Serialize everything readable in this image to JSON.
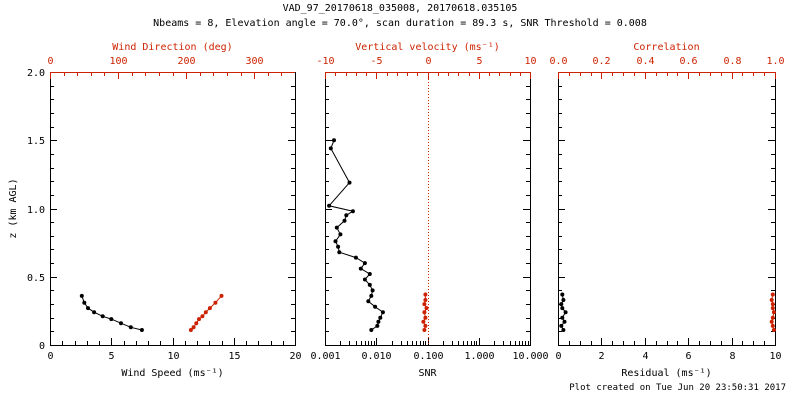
{
  "title": "VAD_97_20170618_035008, 20170618.035105",
  "subtitle": "Nbeams = 8, Elevation angle = 70.0°, scan duration = 89.3 s, SNR Threshold = 0.008",
  "footer_note": "Plot created on Tue Jun 20 23:50:31 2017",
  "colors": {
    "axis": "#000000",
    "secondary": "#cc2200",
    "background": "#ffffff"
  },
  "chart_data": [
    {
      "type": "line",
      "panel": "wind",
      "xlabel": "Wind Speed (ms⁻¹)",
      "ylabel": "z (km AGL)",
      "xscale": "linear",
      "xlim": [
        0,
        20
      ],
      "xticks": [
        0,
        5,
        10,
        15,
        20
      ],
      "xtick_labels": [
        "0",
        "5",
        "10",
        "15",
        "20"
      ],
      "xminor_divs": 5,
      "ylim": [
        0,
        2
      ],
      "yticks": [
        0,
        0.5,
        1,
        1.5,
        2
      ],
      "ytick_labels": [
        "0",
        "0.5",
        "1.0",
        "1.5",
        "2.0"
      ],
      "yminor_divs": 5,
      "grid": false,
      "top_axis": {
        "label": "Wind Direction (deg)",
        "lim": [
          0,
          360
        ],
        "ticks": [
          0,
          100,
          200,
          300
        ],
        "tick_labels": [
          "0",
          "100",
          "200",
          "300"
        ],
        "minor_divs": 5
      },
      "series": [
        {
          "name": "wind-speed",
          "axis": "bottom",
          "color": "#000000",
          "x": [
            2.6,
            2.8,
            3.1,
            3.6,
            4.3,
            5.0,
            5.8,
            6.6,
            7.5
          ],
          "z": [
            0.36,
            0.31,
            0.27,
            0.24,
            0.21,
            0.19,
            0.16,
            0.13,
            0.11
          ]
        },
        {
          "name": "wind-direction",
          "axis": "top",
          "color": "#cc2200",
          "x": [
            207,
            211,
            215,
            219,
            224,
            229,
            235,
            243,
            252
          ],
          "z": [
            0.11,
            0.13,
            0.16,
            0.19,
            0.21,
            0.24,
            0.27,
            0.31,
            0.36
          ]
        }
      ]
    },
    {
      "type": "line",
      "panel": "snr",
      "xlabel": "SNR",
      "xscale": "log",
      "xlim": [
        0.001,
        10
      ],
      "xticks": [
        0.001,
        0.01,
        0.1,
        1,
        10
      ],
      "xtick_labels": [
        "0.001",
        "0.010",
        "0.100",
        "1.000",
        "10.000"
      ],
      "ylim": [
        0,
        2
      ],
      "yticks": [
        0,
        0.5,
        1,
        1.5,
        2
      ],
      "yminor_divs": 5,
      "grid": false,
      "top_axis": {
        "label": "Vertical velocity (ms⁻¹)",
        "lim": [
          -10,
          10
        ],
        "ticks": [
          -10,
          -5,
          0,
          5,
          10
        ],
        "tick_labels": [
          "-10",
          "-5",
          "0",
          "5",
          "10"
        ],
        "minor_divs": 5
      },
      "ref_line": {
        "axis": "top",
        "value": 0,
        "style": "dotted",
        "color": "#cc2200"
      },
      "series": [
        {
          "name": "snr-profile",
          "axis": "bottom",
          "color": "#000000",
          "x": [
            0.008,
            0.0105,
            0.011,
            0.012,
            0.0135,
            0.0095,
            0.007,
            0.008,
            0.0085,
            0.0075,
            0.006,
            0.0075,
            0.005,
            0.006,
            0.004,
            0.0019,
            0.0018,
            0.0016,
            0.002,
            0.0017,
            0.0024,
            0.0026,
            0.0035,
            0.0012,
            0.003,
            0.0013,
            0.0015
          ],
          "z": [
            0.11,
            0.14,
            0.17,
            0.2,
            0.24,
            0.28,
            0.32,
            0.36,
            0.4,
            0.44,
            0.48,
            0.52,
            0.56,
            0.6,
            0.64,
            0.68,
            0.72,
            0.76,
            0.81,
            0.86,
            0.91,
            0.95,
            0.98,
            1.02,
            1.19,
            1.44,
            1.5
          ]
        },
        {
          "name": "vertical-velocity",
          "axis": "top",
          "color": "#cc2200",
          "x": [
            -0.3,
            -0.2,
            -0.4,
            -0.2,
            -0.3,
            -0.1,
            -0.3,
            -0.2,
            -0.2
          ],
          "z": [
            0.11,
            0.14,
            0.17,
            0.2,
            0.24,
            0.27,
            0.3,
            0.33,
            0.37
          ]
        }
      ]
    },
    {
      "type": "line",
      "panel": "residual",
      "xlabel": "Residual (ms⁻¹)",
      "xscale": "linear",
      "xlim": [
        0,
        10
      ],
      "xticks": [
        0,
        2,
        4,
        6,
        8,
        10
      ],
      "xtick_labels": [
        "0",
        "2",
        "4",
        "6",
        "8",
        "10"
      ],
      "xminor_divs": 4,
      "ylim": [
        0,
        2
      ],
      "yticks": [
        0,
        0.5,
        1,
        1.5,
        2
      ],
      "yminor_divs": 5,
      "grid": false,
      "top_axis": {
        "label": "Correlation",
        "lim": [
          0,
          1
        ],
        "ticks": [
          0,
          0.2,
          0.4,
          0.6,
          0.8,
          1
        ],
        "tick_labels": [
          "0.0",
          "0.2",
          "0.4",
          "0.6",
          "0.8",
          "1.0"
        ],
        "minor_divs": 4
      },
      "series": [
        {
          "name": "residual",
          "axis": "bottom",
          "color": "#000000",
          "x": [
            0.25,
            0.15,
            0.3,
            0.2,
            0.35,
            0.2,
            0.15,
            0.25,
            0.2
          ],
          "z": [
            0.11,
            0.14,
            0.17,
            0.2,
            0.24,
            0.27,
            0.3,
            0.33,
            0.37
          ]
        },
        {
          "name": "correlation",
          "axis": "top",
          "color": "#cc2200",
          "x": [
            0.995,
            0.99,
            0.985,
            0.99,
            0.995,
            0.99,
            0.99,
            0.985,
            0.99
          ],
          "z": [
            0.11,
            0.14,
            0.17,
            0.2,
            0.24,
            0.27,
            0.3,
            0.33,
            0.37
          ]
        }
      ]
    }
  ]
}
